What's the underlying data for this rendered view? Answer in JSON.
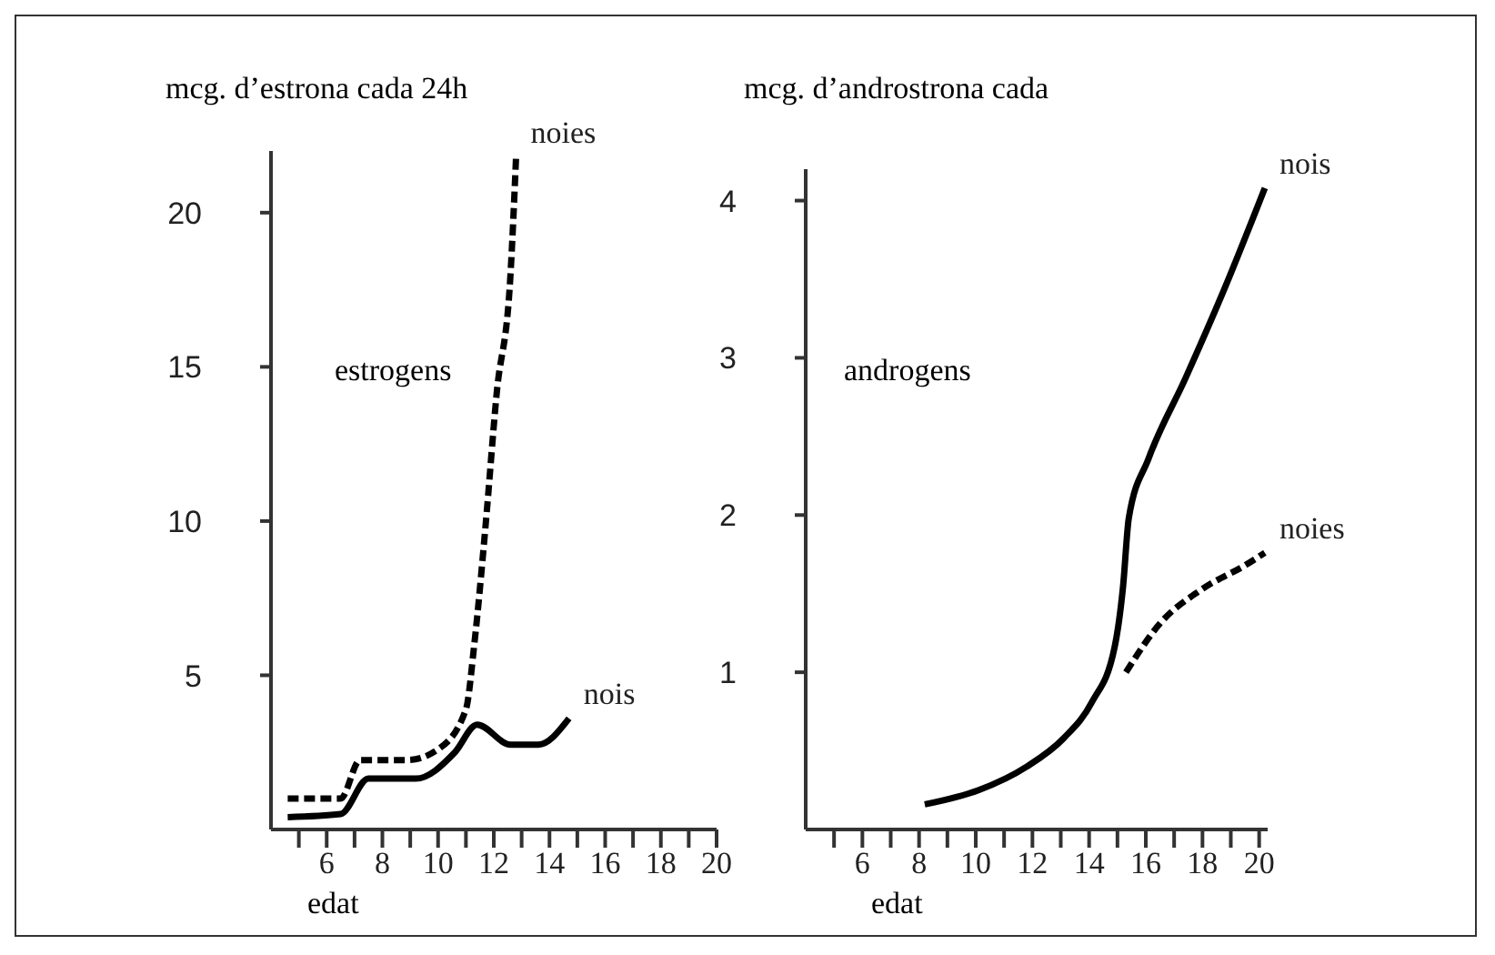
{
  "chart_data": [
    {
      "type": "line",
      "ylabel": "mcg. d’estrona cada 24h",
      "xlabel": "edat",
      "annotations": [
        "estrogens"
      ],
      "xlim": [
        4,
        20
      ],
      "ylim": [
        0,
        22
      ],
      "xticks": [
        {
          "value": 5,
          "label": null
        },
        6,
        {
          "value": 7,
          "label": null
        },
        8,
        {
          "value": 9,
          "label": null
        },
        10,
        {
          "value": 11,
          "label": null
        },
        12,
        {
          "value": 13,
          "label": null
        },
        14,
        {
          "value": 15,
          "label": null
        },
        16,
        {
          "value": 17,
          "label": null
        },
        18,
        {
          "value": 19,
          "label": null
        },
        20
      ],
      "yticks": [
        5,
        10,
        15,
        20
      ],
      "grid": false,
      "legend": false,
      "marker": "none",
      "series": [
        {
          "name": "noies",
          "color": "#000000",
          "line_style": "dotted",
          "x": [
            4.6,
            6.5,
            7.2,
            8.9,
            10.0,
            11.0,
            11.3,
            11.7,
            12.1,
            12.6,
            12.8
          ],
          "values": [
            1.0,
            1.0,
            2.25,
            2.25,
            2.6,
            3.9,
            6.0,
            9.8,
            14.1,
            18.0,
            21.8
          ]
        },
        {
          "name": "nois",
          "color": "#000000",
          "line_style": "solid",
          "x": [
            4.6,
            6.5,
            7.5,
            9.2,
            10.6,
            11.4,
            12.6,
            13.6,
            14.7
          ],
          "values": [
            0.4,
            0.5,
            1.65,
            1.65,
            2.5,
            3.4,
            2.75,
            2.75,
            3.6
          ]
        }
      ]
    },
    {
      "type": "line",
      "ylabel": "mcg. d’androstrona cada",
      "xlabel": "edat",
      "annotations": [
        "androgens"
      ],
      "xlim": [
        4,
        20.3
      ],
      "ylim": [
        0,
        4.2
      ],
      "xticks": [
        {
          "value": 5,
          "label": null
        },
        6,
        {
          "value": 7,
          "label": null
        },
        8,
        {
          "value": 9,
          "label": null
        },
        10,
        {
          "value": 11,
          "label": null
        },
        12,
        {
          "value": 13,
          "label": null
        },
        14,
        {
          "value": 15,
          "label": null
        },
        16,
        {
          "value": 17,
          "label": null
        },
        18,
        {
          "value": 19,
          "label": null
        },
        20
      ],
      "yticks": [
        1,
        2,
        3,
        4
      ],
      "grid": false,
      "legend": false,
      "marker": "none",
      "series": [
        {
          "name": "nois",
          "color": "#000000",
          "line_style": "solid",
          "x": [
            8.2,
            10.1,
            11.8,
            13.1,
            14.1,
            14.9,
            15.2,
            15.4,
            16.1,
            17.4,
            18.8,
            20.2
          ],
          "values": [
            0.16,
            0.25,
            0.4,
            0.58,
            0.81,
            1.16,
            1.55,
            1.98,
            2.36,
            2.87,
            3.45,
            4.08
          ]
        },
        {
          "name": "noies",
          "color": "#000000",
          "line_style": "dotted",
          "x": [
            15.3,
            16.5,
            18.0,
            19.5,
            20.2
          ],
          "values": [
            1.0,
            1.31,
            1.53,
            1.68,
            1.76
          ]
        }
      ]
    }
  ]
}
